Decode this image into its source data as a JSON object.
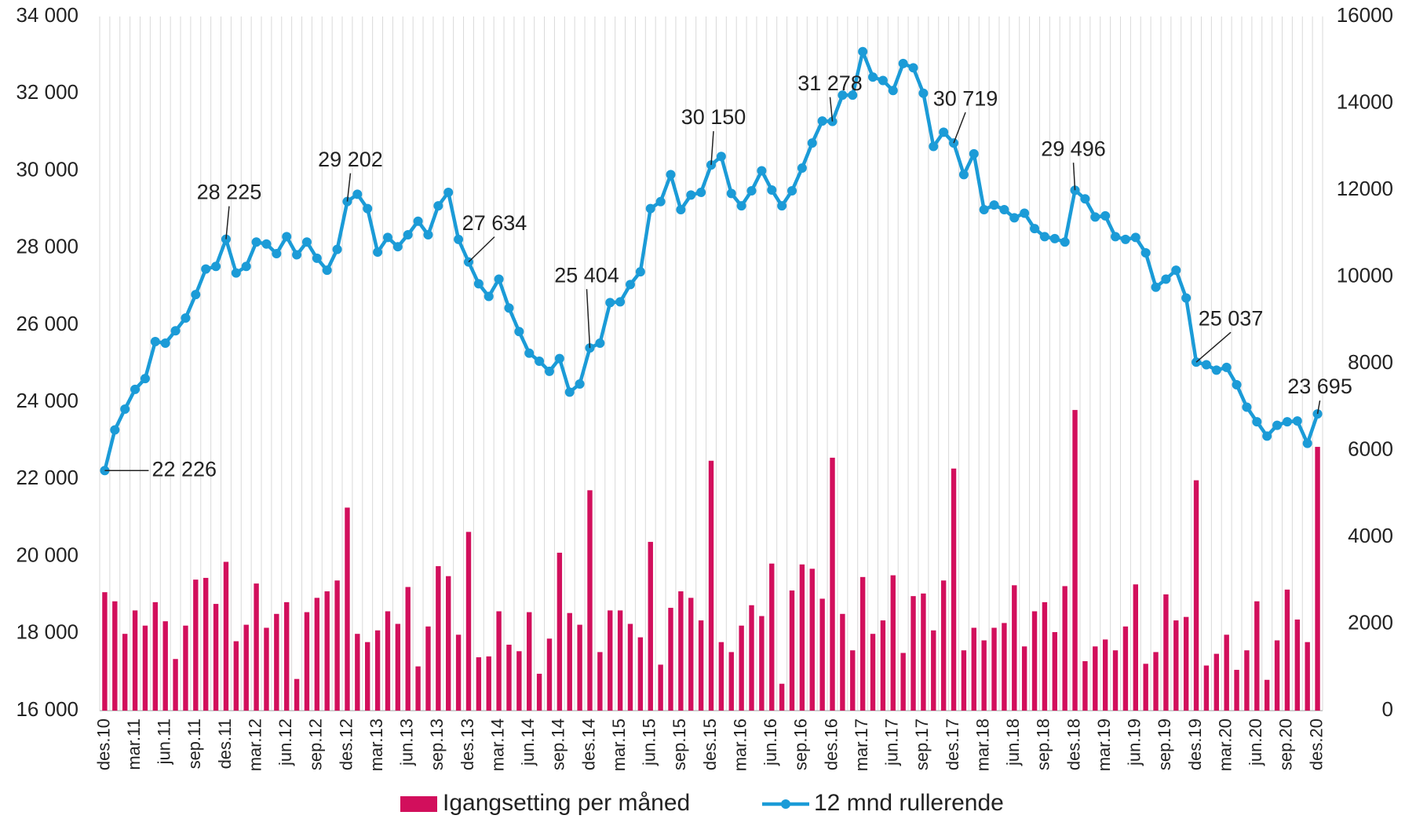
{
  "chart_data": {
    "type": "bar_line",
    "categories": [
      "des.10",
      null,
      null,
      "mar.11",
      null,
      null,
      "jun.11",
      null,
      null,
      "sep.11",
      null,
      null,
      "des.11",
      null,
      null,
      "mar.12",
      null,
      null,
      "jun.12",
      null,
      null,
      "sep.12",
      null,
      null,
      "des.12",
      null,
      null,
      "mar.13",
      null,
      null,
      "jun.13",
      null,
      null,
      "sep.13",
      null,
      null,
      "des.13",
      null,
      null,
      "mar.14",
      null,
      null,
      "jun.14",
      null,
      null,
      "sep.14",
      null,
      null,
      "des.14",
      null,
      null,
      "mar.15",
      null,
      null,
      "jun.15",
      null,
      null,
      "sep.15",
      null,
      null,
      "des.15",
      null,
      null,
      "mar.16",
      null,
      null,
      "jun.16",
      null,
      null,
      "sep.16",
      null,
      null,
      "des.16",
      null,
      null,
      "mar.17",
      null,
      null,
      "jun.17",
      null,
      null,
      "sep.17",
      null,
      null,
      "des.17",
      null,
      null,
      "mar.18",
      null,
      null,
      "jun.18",
      null,
      null,
      "sep.18",
      null,
      null,
      "des.18",
      null,
      null,
      "mar.19",
      null,
      null,
      "jun.19",
      null,
      null,
      "sep.19",
      null,
      null,
      "des.19",
      null,
      null,
      "mar.20",
      null,
      null,
      "jun.20",
      null,
      null,
      "sep.20",
      null,
      null,
      "des.20"
    ],
    "series": [
      {
        "name": "Igangsetting per måned",
        "color": "#d20f5c",
        "kind": "bar",
        "axis": "y2",
        "values": [
          2730,
          2520,
          1770,
          2310,
          1960,
          2500,
          2060,
          1190,
          1960,
          3020,
          3060,
          2460,
          3430,
          1600,
          1980,
          2930,
          1910,
          2230,
          2500,
          730,
          2270,
          2600,
          2750,
          3000,
          4680,
          1770,
          1580,
          1850,
          2290,
          2000,
          2850,
          1020,
          1940,
          3330,
          3100,
          1750,
          4120,
          1230,
          1250,
          2290,
          1520,
          1370,
          2270,
          850,
          1660,
          3640,
          2250,
          1980,
          5080,
          1350,
          2310,
          2310,
          2000,
          1690,
          3890,
          1060,
          2370,
          2750,
          2600,
          2080,
          5760,
          1580,
          1350,
          1960,
          2430,
          2180,
          3390,
          620,
          2770,
          3370,
          3270,
          2580,
          5830,
          2230,
          1390,
          3080,
          1770,
          2080,
          3120,
          1330,
          2640,
          2700,
          1850,
          3000,
          5580,
          1390,
          1910,
          1620,
          1910,
          2020,
          2890,
          1480,
          2290,
          2500,
          1810,
          2870,
          6930,
          1140,
          1480,
          1640,
          1390,
          1940,
          2910,
          1080,
          1350,
          2680,
          2080,
          2160,
          5310,
          1040,
          1310,
          1750,
          940,
          1390,
          2520,
          710,
          1620,
          2790,
          2100,
          1580,
          6080
        ]
      },
      {
        "name": "12 mnd rullerende",
        "color": "#1b9bd7",
        "kind": "line",
        "values": [
          22226,
          23280,
          23820,
          24330,
          24610,
          25570,
          25530,
          25850,
          26180,
          26790,
          27450,
          27520,
          28225,
          27350,
          27520,
          28150,
          28100,
          27850,
          28290,
          27820,
          28150,
          27730,
          27420,
          27960,
          29202,
          29390,
          29020,
          27890,
          28270,
          28030,
          28340,
          28690,
          28340,
          29090,
          29440,
          28220,
          27634,
          27070,
          26740,
          27190,
          26440,
          25830,
          25270,
          25060,
          24800,
          25130,
          24260,
          24470,
          25404,
          25530,
          26580,
          26600,
          27050,
          27380,
          29020,
          29200,
          29900,
          28990,
          29370,
          29440,
          30150,
          30370,
          29410,
          29090,
          29480,
          30000,
          29500,
          29090,
          29480,
          30070,
          30720,
          31290,
          31278,
          31960,
          31960,
          33090,
          32430,
          32340,
          32080,
          32780,
          32670,
          32010,
          30630,
          31000,
          30719,
          29900,
          30440,
          28990,
          29110,
          28990,
          28780,
          28900,
          28500,
          28290,
          28240,
          28150,
          29496,
          29270,
          28800,
          28830,
          28290,
          28220,
          28270,
          27870,
          26980,
          27190,
          27420,
          26700,
          25037,
          24970,
          24830,
          24900,
          24450,
          23870,
          23490,
          23120,
          23400,
          23490,
          23510,
          22930,
          23695
        ],
        "value_labels": [
          "22 226",
          null,
          null,
          null,
          null,
          null,
          null,
          null,
          null,
          null,
          null,
          null,
          "28 225",
          null,
          null,
          null,
          null,
          null,
          null,
          null,
          null,
          null,
          null,
          null,
          "29 202",
          null,
          null,
          null,
          null,
          null,
          null,
          null,
          null,
          null,
          null,
          null,
          "27 634",
          null,
          null,
          null,
          null,
          null,
          null,
          null,
          null,
          null,
          null,
          null,
          "25 404",
          null,
          null,
          null,
          null,
          null,
          null,
          null,
          null,
          null,
          null,
          null,
          "30 150",
          null,
          null,
          null,
          null,
          null,
          null,
          null,
          null,
          null,
          null,
          null,
          "31 278",
          null,
          null,
          null,
          null,
          null,
          null,
          null,
          null,
          null,
          null,
          null,
          "30 719",
          null,
          null,
          null,
          null,
          null,
          null,
          null,
          null,
          null,
          null,
          null,
          "29 496",
          null,
          null,
          null,
          null,
          null,
          null,
          null,
          null,
          null,
          null,
          null,
          "25 037",
          null,
          null,
          null,
          null,
          null,
          null,
          null,
          null,
          null,
          null,
          null,
          "23 695"
        ]
      }
    ],
    "ylim": [
      16000,
      34000
    ],
    "yticks": [
      {
        "value": 16000,
        "label": "16 000"
      },
      {
        "value": 18000,
        "label": "18 000"
      },
      {
        "value": 20000,
        "label": "20 000"
      },
      {
        "value": 22000,
        "label": "22 000"
      },
      {
        "value": 24000,
        "label": "24 000"
      },
      {
        "value": 26000,
        "label": "26 000"
      },
      {
        "value": 28000,
        "label": "28 000"
      },
      {
        "value": 30000,
        "label": "30 000"
      },
      {
        "value": 32000,
        "label": "32 000"
      },
      {
        "value": 34000,
        "label": "34 000"
      }
    ],
    "y2lim": [
      0,
      16000
    ],
    "y2ticks": [
      0,
      2000,
      4000,
      6000,
      8000,
      10000,
      12000,
      14000,
      16000
    ],
    "grid": true,
    "legend": "bottom"
  }
}
